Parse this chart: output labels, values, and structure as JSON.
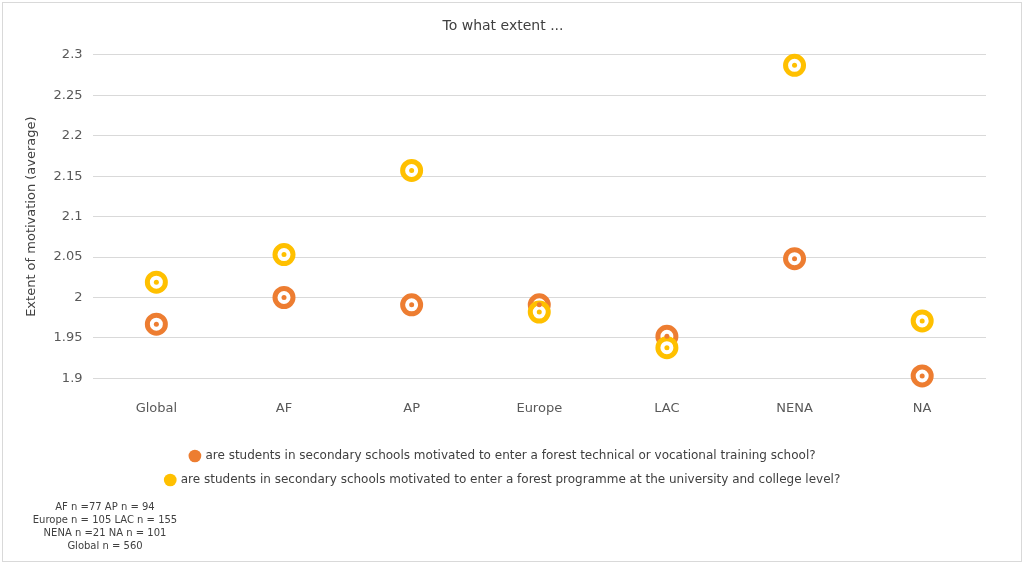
{
  "chart_data": {
    "type": "scatter",
    "title": "To what extent ...",
    "ylabel": "Extent of motivation (average)",
    "categories": [
      "Global",
      "AF",
      "AP",
      "Europe",
      "LAC",
      "NENA",
      "NA"
    ],
    "series": [
      {
        "name": "are students in secondary schools motivated to enter a forest technical or vocational training school?",
        "color": "#ed7d31",
        "values": [
          1.967,
          2.0,
          1.991,
          1.991,
          1.952,
          2.048,
          1.903
        ]
      },
      {
        "name": "are students in secondary schools motivated to enter a forest programme at the university and college level?",
        "color": "#ffc000",
        "values": [
          2.019,
          2.053,
          2.157,
          1.982,
          1.938,
          2.287,
          1.971
        ]
      }
    ],
    "ylim": [
      1.9,
      2.3
    ],
    "yticks": [
      1.9,
      1.95,
      2,
      2.05,
      2.1,
      2.15,
      2.2,
      2.25,
      2.3
    ],
    "grid": "y",
    "legend": "bottom",
    "marker": "circle",
    "annotations": [
      "AF n =77  AP n = 94\nEurope n = 105  LAC n = 155\nNENA n =21  NA n = 101\nGlobal n = 560"
    ]
  }
}
